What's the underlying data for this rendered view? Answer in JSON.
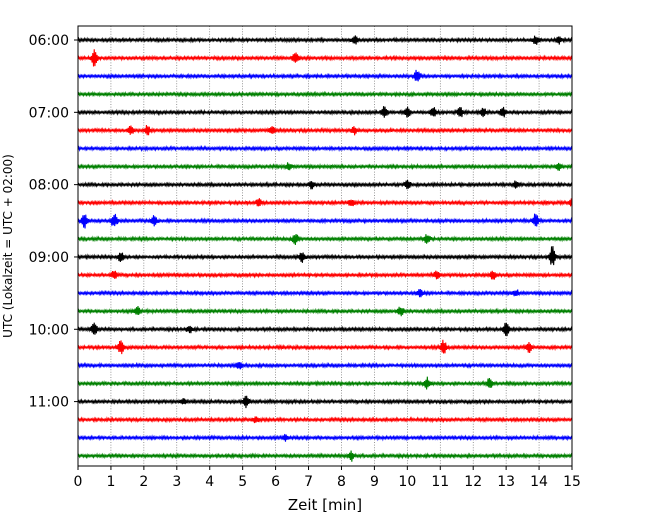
{
  "chart_data": {
    "type": "line",
    "xlabel": "Zeit  [min]",
    "ylabel": "UTC (Lokalzeit = UTC + 02:00)",
    "xlim": [
      0,
      15
    ],
    "x_ticks": [
      "0",
      "1",
      "2",
      "3",
      "4",
      "5",
      "6",
      "7",
      "8",
      "9",
      "10",
      "11",
      "12",
      "13",
      "14",
      "15"
    ],
    "y_tick_labels": [
      "06:00",
      "07:00",
      "08:00",
      "09:00",
      "10:00",
      "11:00"
    ],
    "grid_x": "dotted vertical",
    "trace_interval_minutes": 15,
    "trace_colors": [
      "#000000",
      "#ff0000",
      "#0000ff",
      "#008000"
    ],
    "series": [
      {
        "start": "06:00",
        "bursts": [
          [
            8.4,
            0.28
          ],
          [
            13.9,
            0.22
          ],
          [
            14.6,
            0.22
          ]
        ]
      },
      {
        "start": "06:15",
        "bursts": [
          [
            0.5,
            0.45
          ],
          [
            6.6,
            0.35
          ]
        ]
      },
      {
        "start": "06:30",
        "bursts": [
          [
            10.3,
            0.35
          ]
        ]
      },
      {
        "start": "06:45",
        "bursts": []
      },
      {
        "start": "07:00",
        "bursts": [
          [
            9.3,
            0.3
          ],
          [
            10.0,
            0.3
          ],
          [
            10.8,
            0.3
          ],
          [
            11.6,
            0.28
          ],
          [
            12.3,
            0.28
          ],
          [
            12.9,
            0.28
          ]
        ]
      },
      {
        "start": "07:15",
        "bursts": [
          [
            1.6,
            0.25
          ],
          [
            2.1,
            0.25
          ],
          [
            5.9,
            0.2
          ],
          [
            8.4,
            0.2
          ]
        ]
      },
      {
        "start": "07:30",
        "bursts": []
      },
      {
        "start": "07:45",
        "bursts": [
          [
            6.4,
            0.22
          ],
          [
            14.6,
            0.2
          ]
        ]
      },
      {
        "start": "08:00",
        "bursts": [
          [
            7.1,
            0.22
          ],
          [
            10.0,
            0.22
          ],
          [
            13.3,
            0.2
          ]
        ]
      },
      {
        "start": "08:15",
        "bursts": [
          [
            5.5,
            0.2
          ],
          [
            8.3,
            0.2
          ],
          [
            15.0,
            0.2
          ]
        ]
      },
      {
        "start": "08:30",
        "bursts": [
          [
            0.2,
            0.38
          ],
          [
            1.1,
            0.42
          ],
          [
            2.3,
            0.3
          ],
          [
            13.9,
            0.38
          ]
        ]
      },
      {
        "start": "08:45",
        "bursts": [
          [
            6.6,
            0.3
          ],
          [
            10.6,
            0.25
          ]
        ]
      },
      {
        "start": "09:00",
        "bursts": [
          [
            1.3,
            0.25
          ],
          [
            6.8,
            0.3
          ],
          [
            14.4,
            0.55
          ]
        ]
      },
      {
        "start": "09:15",
        "bursts": [
          [
            1.1,
            0.25
          ],
          [
            10.9,
            0.2
          ],
          [
            12.6,
            0.22
          ]
        ]
      },
      {
        "start": "09:30",
        "bursts": [
          [
            10.4,
            0.22
          ],
          [
            13.3,
            0.2
          ]
        ]
      },
      {
        "start": "09:45",
        "bursts": [
          [
            1.8,
            0.25
          ],
          [
            9.8,
            0.25
          ]
        ]
      },
      {
        "start": "10:00",
        "bursts": [
          [
            0.5,
            0.35
          ],
          [
            3.4,
            0.2
          ],
          [
            13.0,
            0.45
          ]
        ]
      },
      {
        "start": "10:15",
        "bursts": [
          [
            1.3,
            0.35
          ],
          [
            11.1,
            0.38
          ],
          [
            13.7,
            0.3
          ]
        ]
      },
      {
        "start": "10:30",
        "bursts": [
          [
            4.9,
            0.2
          ]
        ]
      },
      {
        "start": "10:45",
        "bursts": [
          [
            10.6,
            0.3
          ],
          [
            12.5,
            0.3
          ]
        ]
      },
      {
        "start": "11:00",
        "bursts": [
          [
            5.1,
            0.28
          ],
          [
            3.2,
            0.15
          ]
        ]
      },
      {
        "start": "11:15",
        "bursts": [
          [
            5.4,
            0.18
          ]
        ]
      },
      {
        "start": "11:30",
        "bursts": [
          [
            6.3,
            0.15
          ]
        ]
      },
      {
        "start": "11:45",
        "bursts": [
          [
            8.3,
            0.25
          ]
        ]
      }
    ]
  }
}
